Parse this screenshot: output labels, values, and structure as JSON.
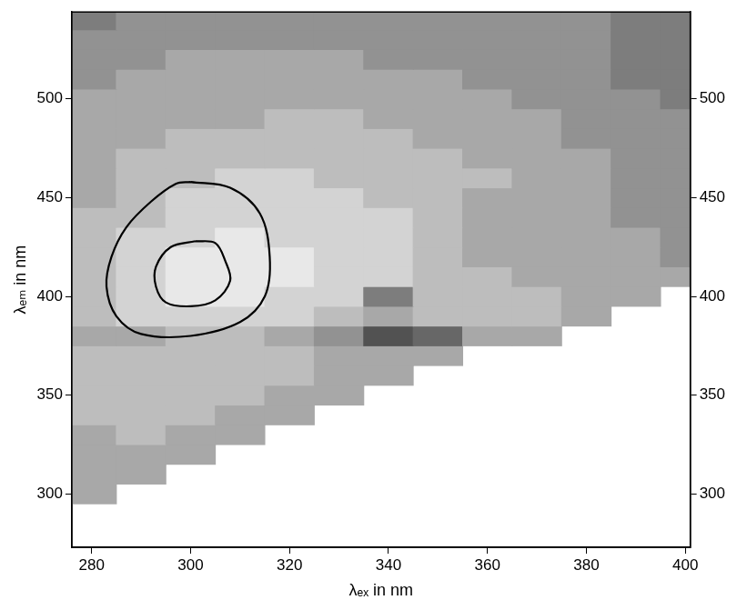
{
  "chart_data": {
    "type": "contour",
    "xlabel": "λₑₓ in nm",
    "ylabel": "λₑₘ in nm",
    "xlim": [
      276,
      401
    ],
    "xticks": [
      280,
      300,
      320,
      340,
      360,
      380,
      400
    ],
    "ylim": [
      273,
      544
    ],
    "yticks": [
      300,
      350,
      400,
      450,
      500
    ],
    "y2lim": [
      273,
      544
    ],
    "y2ticks": [
      300,
      350,
      400,
      450,
      500
    ],
    "grid": false,
    "cells": {
      "range": [
        1,
        9
      ],
      "x_edges": [
        275,
        285,
        295,
        305,
        315,
        325,
        335,
        345,
        355,
        365,
        375,
        385,
        395,
        405
      ],
      "y_edges": [
        275,
        285,
        295,
        305,
        315,
        325,
        335,
        345,
        355,
        365,
        375,
        385,
        395,
        405,
        415,
        425,
        435,
        445,
        455,
        465,
        475,
        485,
        495,
        505,
        515,
        525,
        535,
        545
      ],
      "values": [
        [
          null,
          null,
          null,
          null,
          null,
          null,
          null,
          null,
          null,
          null,
          null,
          null,
          null
        ],
        [
          null,
          null,
          null,
          null,
          null,
          null,
          null,
          null,
          null,
          null,
          null,
          null,
          null
        ],
        [
          6,
          null,
          null,
          null,
          null,
          null,
          null,
          null,
          null,
          null,
          null,
          null,
          null
        ],
        [
          6,
          6,
          null,
          null,
          null,
          null,
          null,
          null,
          null,
          null,
          null,
          null,
          null
        ],
        [
          6,
          6,
          6,
          null,
          null,
          null,
          null,
          null,
          null,
          null,
          null,
          null,
          null
        ],
        [
          6,
          7,
          6,
          6,
          null,
          null,
          null,
          null,
          null,
          null,
          null,
          null,
          null
        ],
        [
          7,
          7,
          7,
          6,
          6,
          null,
          null,
          null,
          null,
          null,
          null,
          null,
          null
        ],
        [
          7,
          7,
          7,
          7,
          6,
          6,
          null,
          null,
          null,
          null,
          null,
          null,
          null
        ],
        [
          7,
          7,
          7,
          7,
          7,
          6,
          6,
          null,
          null,
          null,
          null,
          null,
          null
        ],
        [
          7,
          7,
          7,
          7,
          7,
          6,
          6,
          6,
          null,
          null,
          null,
          null,
          null
        ],
        [
          6,
          6,
          7,
          7,
          6,
          5,
          2,
          3,
          6,
          6,
          null,
          null,
          null
        ],
        [
          7,
          8,
          8,
          8,
          8,
          7,
          6,
          7,
          7,
          7,
          6,
          null,
          null
        ],
        [
          7,
          8,
          9,
          9,
          8,
          8,
          4,
          7,
          7,
          7,
          6,
          6,
          null
        ],
        [
          7,
          8,
          9,
          9,
          9,
          8,
          8,
          7,
          7,
          6,
          6,
          6,
          6
        ],
        [
          7,
          8,
          9,
          9,
          9,
          8,
          8,
          7,
          6,
          6,
          6,
          6,
          5
        ],
        [
          7,
          8,
          8,
          9,
          8,
          8,
          8,
          7,
          6,
          6,
          6,
          6,
          5
        ],
        [
          7,
          7,
          8,
          8,
          8,
          8,
          8,
          7,
          6,
          6,
          6,
          5,
          5
        ],
        [
          6,
          7,
          8,
          8,
          8,
          8,
          7,
          7,
          6,
          6,
          6,
          5,
          5
        ],
        [
          6,
          7,
          7,
          8,
          8,
          7,
          7,
          7,
          7,
          6,
          6,
          5,
          5
        ],
        [
          6,
          7,
          7,
          7,
          7,
          7,
          7,
          7,
          6,
          6,
          6,
          5,
          5
        ],
        [
          6,
          6,
          7,
          7,
          7,
          7,
          7,
          6,
          6,
          6,
          5,
          5,
          5
        ],
        [
          6,
          6,
          6,
          6,
          7,
          7,
          6,
          6,
          6,
          6,
          5,
          5,
          5
        ],
        [
          6,
          6,
          6,
          6,
          6,
          6,
          6,
          6,
          6,
          5,
          5,
          5,
          4
        ],
        [
          5,
          6,
          6,
          6,
          6,
          6,
          6,
          6,
          5,
          5,
          5,
          4,
          4
        ],
        [
          5,
          5,
          6,
          6,
          6,
          6,
          5,
          5,
          5,
          5,
          5,
          4,
          4
        ],
        [
          5,
          5,
          5,
          5,
          5,
          5,
          5,
          5,
          5,
          5,
          5,
          4,
          4
        ],
        [
          4,
          5,
          5,
          5,
          5,
          5,
          5,
          5,
          5,
          5,
          5,
          4,
          4
        ]
      ]
    },
    "series": [
      {
        "color": "#000000",
        "line_style": "solid",
        "x": [
          300,
          308,
          314,
          316,
          315,
          310,
          300,
          290,
          285,
          283,
          284,
          287,
          292,
          297,
          300
        ],
        "values": [
          458,
          455,
          442,
          420,
          400,
          387,
          380,
          381,
          390,
          405,
          420,
          435,
          448,
          457,
          458
        ]
      },
      {
        "color": "#000000",
        "line_style": "solid",
        "x": [
          301,
          305,
          307,
          308,
          305,
          300,
          295,
          293,
          293,
          296,
          301
        ],
        "values": [
          428,
          427,
          418,
          408,
          398,
          395,
          397,
          405,
          415,
          425,
          428
        ]
      }
    ]
  }
}
